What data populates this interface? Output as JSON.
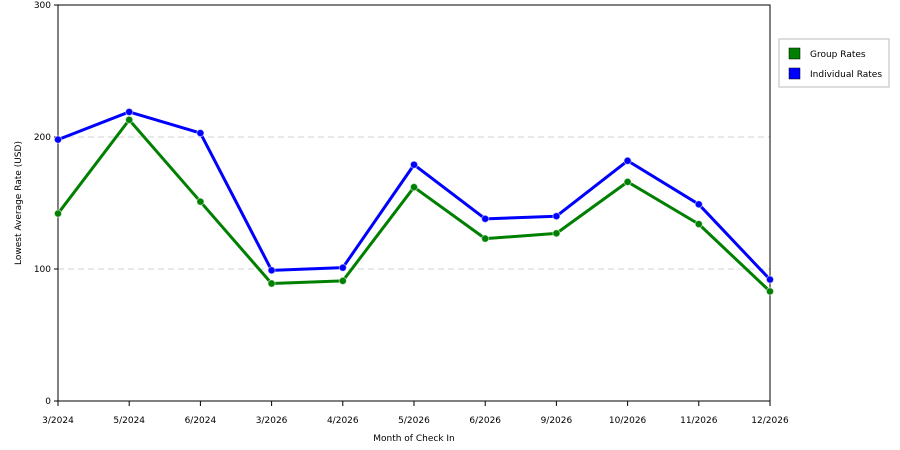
{
  "chart_data": {
    "type": "line",
    "categories": [
      "3/2024",
      "5/2024",
      "6/2024",
      "3/2026",
      "4/2026",
      "5/2026",
      "6/2026",
      "9/2026",
      "10/2026",
      "11/2026",
      "12/2026"
    ],
    "series": [
      {
        "name": "Group Rates",
        "color": "#008000",
        "values": [
          142,
          213,
          151,
          89,
          91,
          162,
          123,
          127,
          166,
          134,
          83
        ]
      },
      {
        "name": "Individual Rates",
        "color": "#0000ff",
        "values": [
          198,
          219,
          203,
          99,
          101,
          179,
          138,
          140,
          182,
          149,
          92
        ]
      }
    ],
    "xlabel": "Month of Check In",
    "ylabel": "Lowest Average Rate (USD)",
    "ylim": [
      0,
      300
    ],
    "yticks": [
      0,
      100,
      200,
      300
    ],
    "grid": "horizontal dashed",
    "legend_position": "right"
  }
}
